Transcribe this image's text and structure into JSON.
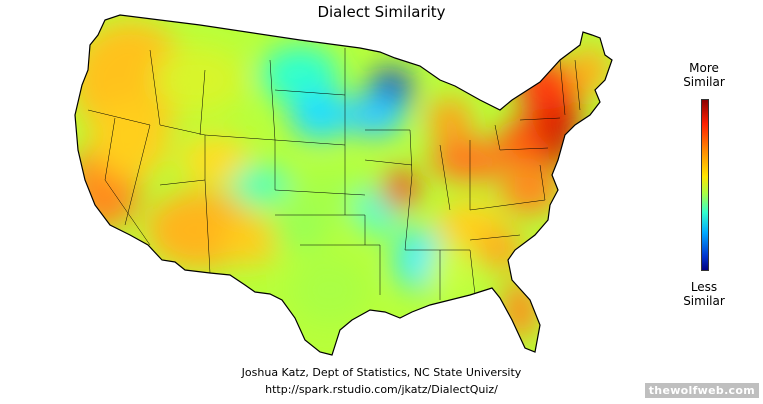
{
  "title": "Dialect Similarity",
  "legend": {
    "top_label_line1": "More",
    "top_label_line2": "Similar",
    "bottom_label_line1": "Less",
    "bottom_label_line2": "Similar",
    "colors": [
      "#8b0000",
      "#ff2000",
      "#ff8c00",
      "#ffe600",
      "#aaff44",
      "#33ffcc",
      "#00aaff",
      "#0033cc",
      "#000080"
    ]
  },
  "credits": {
    "line1": "Joshua Katz, Dept of Statistics, NC State University",
    "line2": "http://spark.rstudio.com/jkatz/DialectQuiz/"
  },
  "watermark": "thewolfweb.com",
  "colors": {
    "background": "#ffffff",
    "border": "#000000"
  }
}
